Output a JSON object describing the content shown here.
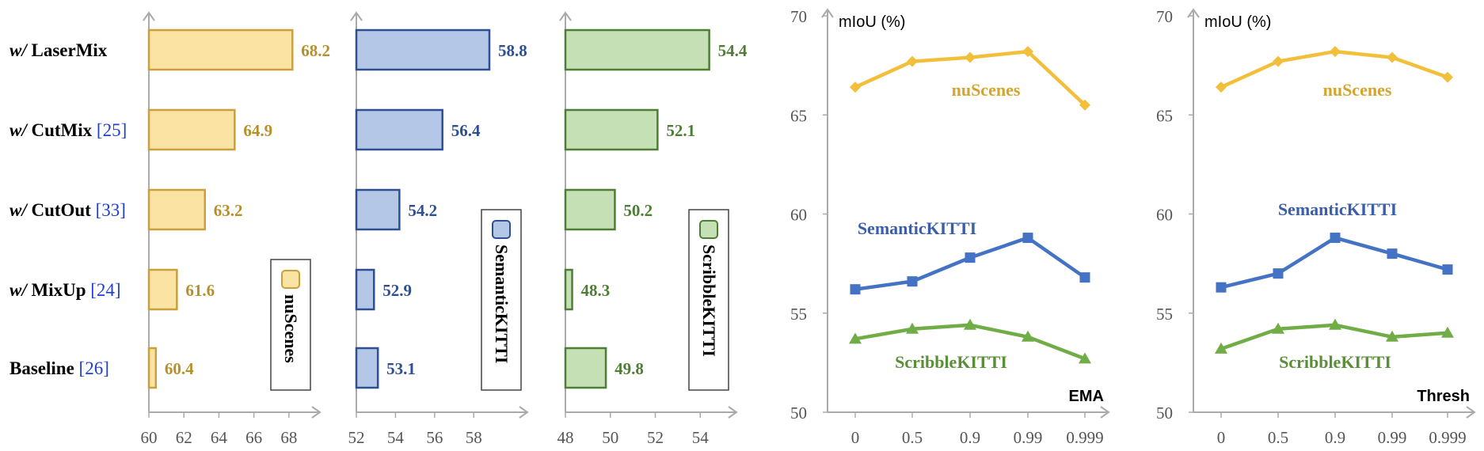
{
  "chart_data": [
    {
      "type": "bar",
      "orientation": "horizontal",
      "categories_prefix": [
        "w/",
        "w/",
        "w/",
        "w/",
        ""
      ],
      "categories": [
        "LaserMix",
        "CutMix",
        "CutOut",
        "MixUp",
        "Baseline"
      ],
      "category_refs": [
        "",
        "[25]",
        "[33]",
        "[24]",
        "[26]"
      ],
      "values": [
        68.2,
        64.9,
        63.2,
        61.6,
        60.4
      ],
      "xlim": [
        60,
        69.5
      ],
      "xticks": [
        "60",
        "62",
        "64",
        "66",
        "68"
      ],
      "legend": "nuScenes",
      "legend_position": "bottom-right",
      "colors": {
        "fill": "#fbe3a3",
        "stroke": "#c9a03c",
        "label": "#b5902a"
      }
    },
    {
      "type": "bar",
      "orientation": "horizontal",
      "categories": [
        "LaserMix",
        "CutMix",
        "CutOut",
        "MixUp",
        "Baseline"
      ],
      "values": [
        58.8,
        56.4,
        54.2,
        52.9,
        53.1
      ],
      "xlim": [
        52,
        60.5
      ],
      "xticks": [
        "52",
        "54",
        "56",
        "58"
      ],
      "legend": "SemanticKITTI",
      "legend_position": "right",
      "colors": {
        "fill": "#b4c7e7",
        "stroke": "#2f4f93",
        "label": "#2f4f93"
      }
    },
    {
      "type": "bar",
      "orientation": "horizontal",
      "categories": [
        "LaserMix",
        "CutMix",
        "CutOut",
        "MixUp",
        "Baseline"
      ],
      "values": [
        54.4,
        52.1,
        50.2,
        48.3,
        49.8
      ],
      "xlim": [
        48,
        55.4
      ],
      "xticks": [
        "48",
        "50",
        "52",
        "54"
      ],
      "legend": "ScribbleKITTI",
      "legend_position": "right",
      "colors": {
        "fill": "#c5e0b4",
        "stroke": "#4e7e34",
        "label": "#4e7e34"
      }
    },
    {
      "type": "line",
      "x": [
        "0",
        "0.5",
        "0.9",
        "0.99",
        "0.999"
      ],
      "ylim": [
        50,
        70
      ],
      "yticks": [
        "50",
        "55",
        "60",
        "65",
        "70"
      ],
      "ylabel": "mIoU (%)",
      "corner_label": "EMA",
      "series": [
        {
          "name": "nuScenes",
          "values": [
            66.4,
            67.7,
            67.9,
            68.2,
            65.5
          ],
          "color": "#f2bf3a",
          "marker": "diamond"
        },
        {
          "name": "SemanticKITTI",
          "values": [
            56.2,
            56.6,
            57.8,
            58.8,
            56.8
          ],
          "color": "#4472c4",
          "marker": "square"
        },
        {
          "name": "ScribbleKITTI",
          "values": [
            53.7,
            54.2,
            54.4,
            53.8,
            52.7
          ],
          "color": "#70ad47",
          "marker": "triangle"
        }
      ]
    },
    {
      "type": "line",
      "x": [
        "0",
        "0.5",
        "0.9",
        "0.99",
        "0.999"
      ],
      "ylim": [
        50,
        70
      ],
      "yticks": [
        "50",
        "55",
        "60",
        "65",
        "70"
      ],
      "ylabel": "mIoU (%)",
      "corner_label": "Thresh",
      "series": [
        {
          "name": "nuScenes",
          "values": [
            66.4,
            67.7,
            68.2,
            67.9,
            66.9
          ],
          "color": "#f2bf3a",
          "marker": "diamond"
        },
        {
          "name": "SemanticKITTI",
          "values": [
            56.3,
            57.0,
            58.8,
            58.0,
            57.2
          ],
          "color": "#4472c4",
          "marker": "square"
        },
        {
          "name": "ScribbleKITTI",
          "values": [
            53.2,
            54.2,
            54.4,
            53.8,
            54.0
          ],
          "color": "#70ad47",
          "marker": "triangle"
        }
      ]
    }
  ],
  "text_colors": {
    "nuScenes": "#d4a52c",
    "SemanticKITTI": "#3a5ea8",
    "ScribbleKITTI": "#5a8f38",
    "ref": "#1f3fd6"
  }
}
